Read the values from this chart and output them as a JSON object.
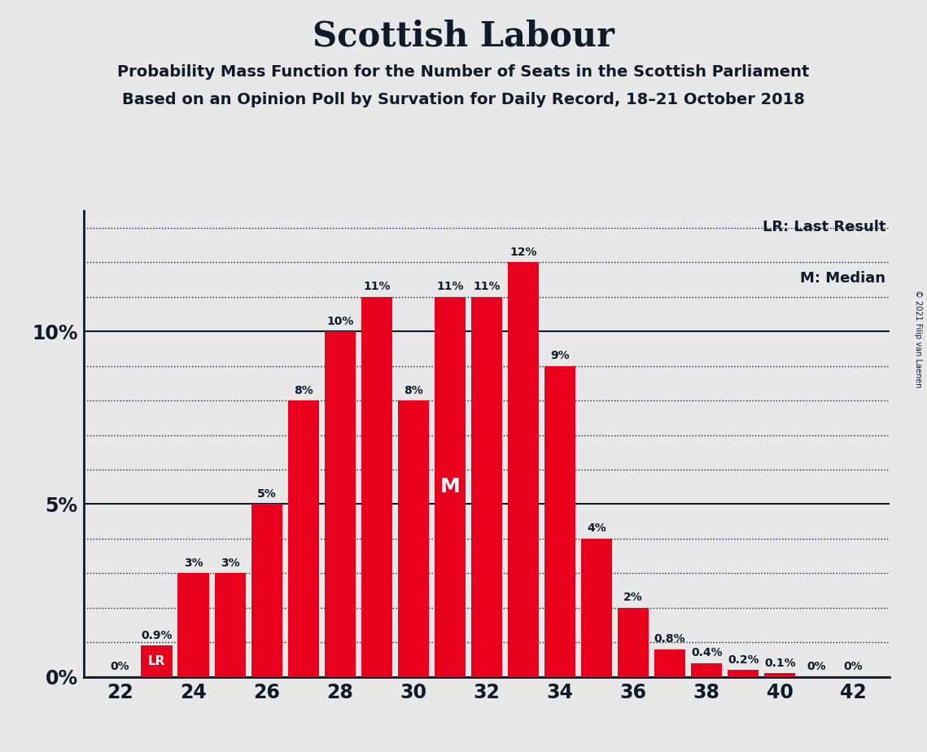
{
  "title": "Scottish Labour",
  "subtitle1": "Probability Mass Function for the Number of Seats in the Scottish Parliament",
  "subtitle2": "Based on an Opinion Poll by Survation for Daily Record, 18–21 October 2018",
  "copyright": "© 2021 Filip van Laenen",
  "categories": [
    22,
    23,
    24,
    25,
    26,
    27,
    28,
    29,
    30,
    31,
    32,
    33,
    34,
    35,
    36,
    37,
    38,
    39,
    40,
    41,
    42
  ],
  "values": [
    0.0,
    0.9,
    3.0,
    3.0,
    5.0,
    8.0,
    10.0,
    11.0,
    8.0,
    11.0,
    11.0,
    12.0,
    9.0,
    4.0,
    2.0,
    0.8,
    0.4,
    0.2,
    0.1,
    0.0,
    0.0
  ],
  "labels": [
    "0%",
    "0.9%",
    "3%",
    "3%",
    "5%",
    "8%",
    "10%",
    "11%",
    "8%",
    "11%",
    "11%",
    "12%",
    "9%",
    "4%",
    "2%",
    "0.8%",
    "0.4%",
    "0.2%",
    "0.1%",
    "0%",
    "0%"
  ],
  "bar_color": "#E8001C",
  "background_color": "#E8E8E8",
  "text_color": "#0D1B2A",
  "lr_seat": 23,
  "median_seat": 31,
  "ylim": [
    0,
    13.5
  ],
  "xlim": [
    21.0,
    43.0
  ],
  "xtick_positions": [
    22,
    24,
    26,
    28,
    30,
    32,
    34,
    36,
    38,
    40,
    42
  ],
  "solid_lines": [
    0,
    5,
    10
  ],
  "dotted_lines": [
    1,
    2,
    3,
    4,
    6,
    7,
    8,
    9,
    11,
    12,
    13
  ],
  "legend_lr": "LR: Last Result",
  "legend_m": "M: Median",
  "bar_width": 0.85
}
